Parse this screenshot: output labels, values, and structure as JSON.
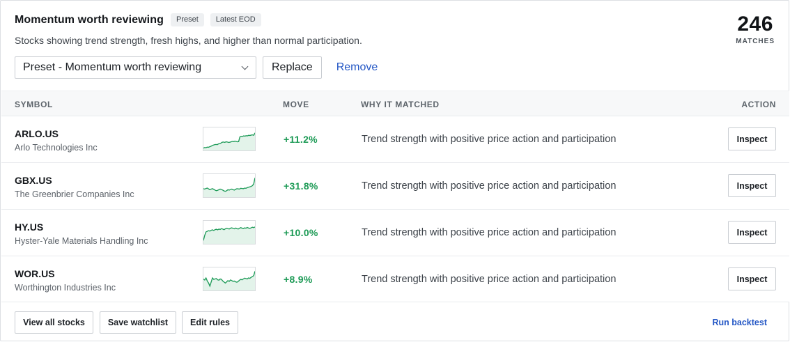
{
  "header": {
    "title": "Momentum worth reviewing",
    "badges": [
      "Preset",
      "Latest EOD"
    ],
    "subtitle": "Stocks showing trend strength, fresh highs, and higher than normal participation.",
    "matches_count": "246",
    "matches_label": "MATCHES"
  },
  "controls": {
    "preset_select_value": "Preset - Momentum worth reviewing",
    "replace_label": "Replace",
    "remove_label": "Remove"
  },
  "table": {
    "columns": {
      "symbol": "SYMBOL",
      "move": "MOVE",
      "why": "WHY IT MATCHED",
      "action": "ACTION"
    },
    "rows": [
      {
        "symbol": "ARLO.US",
        "name": "Arlo Technologies Inc",
        "move": "+11.2%",
        "why": "Trend strength with positive price action and participation",
        "action": "Inspect",
        "sparkline": [
          0.05,
          0.08,
          0.07,
          0.1,
          0.09,
          0.12,
          0.14,
          0.18,
          0.2,
          0.22,
          0.23,
          0.22,
          0.26,
          0.27,
          0.3,
          0.34,
          0.35,
          0.33,
          0.36,
          0.35,
          0.33,
          0.34,
          0.36,
          0.38,
          0.37,
          0.39,
          0.38,
          0.36,
          0.37,
          0.6,
          0.63,
          0.62,
          0.65,
          0.64,
          0.66,
          0.65,
          0.68,
          0.67,
          0.69,
          0.7,
          0.68,
          0.8
        ]
      },
      {
        "symbol": "GBX.US",
        "name": "The Greenbrier Companies Inc",
        "move": "+31.8%",
        "why": "Trend strength with positive price action and participation",
        "action": "Inspect",
        "sparkline": [
          0.35,
          0.33,
          0.36,
          0.38,
          0.34,
          0.3,
          0.33,
          0.35,
          0.32,
          0.28,
          0.25,
          0.27,
          0.3,
          0.33,
          0.31,
          0.28,
          0.24,
          0.22,
          0.25,
          0.3,
          0.28,
          0.31,
          0.33,
          0.3,
          0.28,
          0.32,
          0.35,
          0.34,
          0.33,
          0.37,
          0.36,
          0.35,
          0.38,
          0.37,
          0.4,
          0.42,
          0.44,
          0.46,
          0.5,
          0.58,
          0.88
        ]
      },
      {
        "symbol": "HY.US",
        "name": "Hyster-Yale Materials Handling Inc",
        "move": "+10.0%",
        "why": "Trend strength with positive price action and participation",
        "action": "Inspect",
        "sparkline": [
          0.1,
          0.35,
          0.52,
          0.55,
          0.58,
          0.56,
          0.6,
          0.62,
          0.59,
          0.63,
          0.65,
          0.62,
          0.66,
          0.64,
          0.68,
          0.66,
          0.63,
          0.67,
          0.7,
          0.68,
          0.66,
          0.7,
          0.72,
          0.69,
          0.67,
          0.71,
          0.68,
          0.66,
          0.7,
          0.73,
          0.7,
          0.68,
          0.72,
          0.7,
          0.74,
          0.71,
          0.69,
          0.72,
          0.75,
          0.73,
          0.76
        ]
      },
      {
        "symbol": "WOR.US",
        "name": "Worthington Industries Inc",
        "move": "+8.9%",
        "why": "Trend strength with positive price action and participation",
        "action": "Inspect",
        "sparkline": [
          0.5,
          0.45,
          0.55,
          0.4,
          0.3,
          0.15,
          0.35,
          0.55,
          0.48,
          0.5,
          0.52,
          0.46,
          0.44,
          0.5,
          0.48,
          0.4,
          0.35,
          0.3,
          0.36,
          0.42,
          0.38,
          0.45,
          0.42,
          0.38,
          0.4,
          0.36,
          0.34,
          0.38,
          0.44,
          0.48,
          0.46,
          0.5,
          0.54,
          0.52,
          0.5,
          0.55,
          0.53,
          0.58,
          0.62,
          0.66,
          0.88
        ]
      }
    ]
  },
  "footer": {
    "view_all_label": "View all stocks",
    "save_watchlist_label": "Save watchlist",
    "edit_rules_label": "Edit rules",
    "run_backtest_label": "Run backtest"
  },
  "colors": {
    "accent_link": "#2457c5",
    "positive_green": "#1c9a55",
    "spark_line": "#1e9b58",
    "spark_fill": "#e3f3ea"
  }
}
